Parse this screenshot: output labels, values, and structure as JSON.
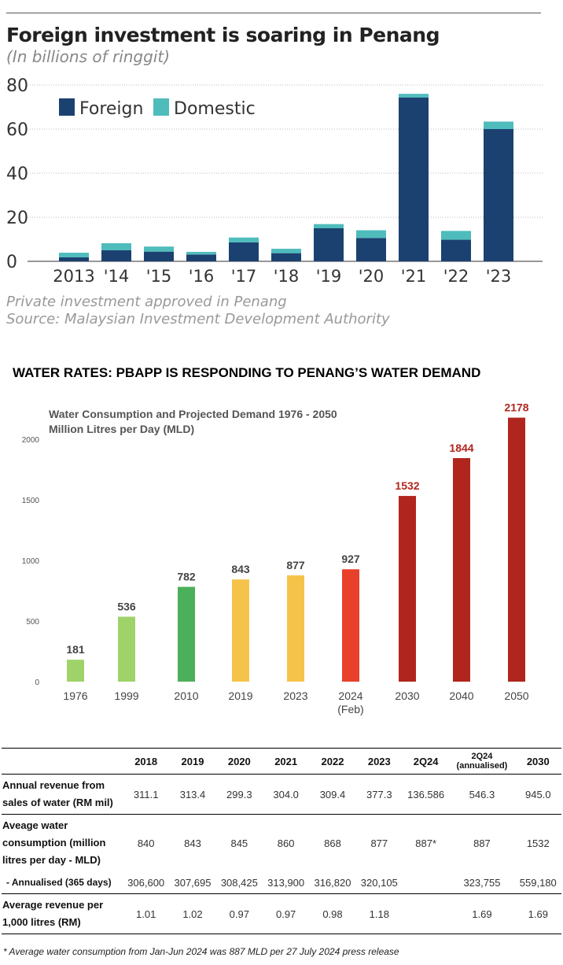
{
  "chart_data": [
    {
      "type": "bar",
      "stacked": true,
      "title": "Foreign investment is soaring in Penang",
      "subtitle": "(In billions of ringgit)",
      "categories": [
        "2013",
        "'14",
        "'15",
        "'16",
        "'17",
        "'18",
        "'19",
        "'20",
        "'21",
        "'22",
        "'23"
      ],
      "series": [
        {
          "name": "Foreign",
          "color": "#1b4170",
          "values": [
            1.8,
            5.0,
            4.4,
            3.1,
            8.6,
            3.7,
            15.0,
            10.6,
            74.3,
            9.8,
            60.0
          ]
        },
        {
          "name": "Domestic",
          "color": "#4fbcbc",
          "values": [
            2.1,
            3.2,
            2.3,
            1.2,
            2.2,
            2.0,
            1.9,
            3.5,
            1.7,
            4.0,
            3.4
          ]
        }
      ],
      "ylim": [
        0,
        80
      ],
      "yticks": [
        0,
        20,
        40,
        60,
        80
      ],
      "grid": true,
      "legend": "top-left",
      "notes": [
        "Private investment approved in Penang",
        "Source: Malaysian Investment Development Authority"
      ]
    },
    {
      "type": "bar",
      "heading": "WATER RATES: PBAPP IS RESPONDING TO PENANG’S WATER DEMAND",
      "title": "Water Consumption and Projected Demand 1976 - 2050",
      "subtitle": "Million Litres per Day (MLD)",
      "categories": [
        "1976",
        "1999",
        "2010",
        "2019",
        "2023",
        "2024",
        "2030",
        "2040",
        "2050"
      ],
      "category_sublabels": [
        "",
        "",
        "",
        "",
        "",
        "(Feb)",
        "",
        "",
        ""
      ],
      "values": [
        181,
        536,
        782,
        843,
        877,
        927,
        1532,
        1844,
        2178
      ],
      "colors": [
        "#9fd36a",
        "#9fd36a",
        "#4caf5a",
        "#f6c34a",
        "#f6c34a",
        "#e8402a",
        "#b0261e",
        "#b0261e",
        "#b0261e"
      ],
      "label_colors": [
        "#444",
        "#444",
        "#444",
        "#444",
        "#444",
        "#444",
        "#b0261e",
        "#b0261e",
        "#b0261e"
      ],
      "ylim": [
        0,
        2000
      ],
      "yticks": [
        0,
        500,
        1000,
        1500,
        2000
      ],
      "grid": false
    }
  ],
  "table": {
    "headers": [
      "",
      "2018",
      "2019",
      "2020",
      "2021",
      "2022",
      "2023",
      "2Q24",
      "2Q24",
      "2030"
    ],
    "header_sub": "(annualised)",
    "rows": [
      {
        "label": "Annual revenue from sales of water (RM mil)",
        "values": [
          "311.1",
          "313.4",
          "299.3",
          "304.0",
          "309.4",
          "377.3",
          "136.586",
          "546.3",
          "945.0"
        ]
      },
      {
        "label": "Aveage water consumption (million litres per day - MLD)",
        "values": [
          "840",
          "843",
          "845",
          "860",
          "868",
          "877",
          "887*",
          "887",
          "1532"
        ]
      },
      {
        "label": "- Annualised (365 days)",
        "values": [
          "306,600",
          "307,695",
          "308,425",
          "313,900",
          "316,820",
          "320,105",
          "",
          "323,755",
          "559,180"
        ]
      },
      {
        "label": "Average revenue per 1,000 litres (RM)",
        "values": [
          "1.01",
          "1.02",
          "0.97",
          "0.97",
          "0.98",
          "1.18",
          "",
          "1.69",
          "1.69"
        ]
      }
    ],
    "footnote": "* Average water consumption from Jan-Jun 2024 was 887 MLD per 27 July 2024 press release"
  }
}
